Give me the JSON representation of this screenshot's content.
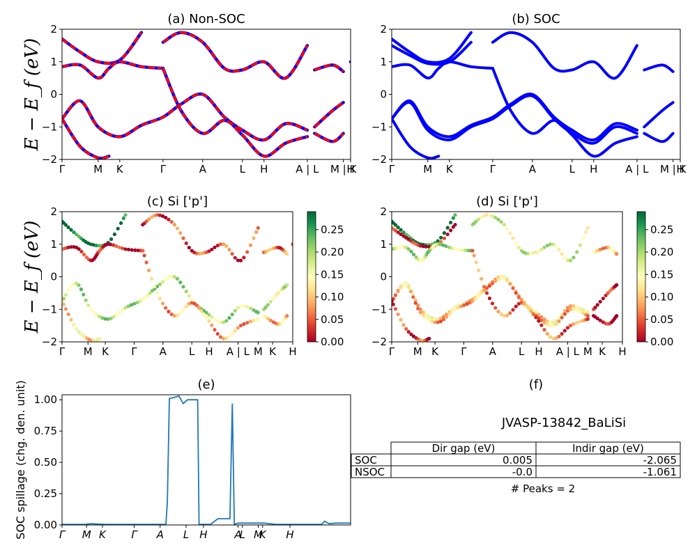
{
  "chart_data": [
    {
      "id": "a",
      "type": "line",
      "title": "(a) Non-SOC",
      "ylabel": "E − E_f (eV)",
      "ylim": [
        -2,
        2
      ],
      "yticks": [
        -2,
        -1,
        0,
        1,
        2
      ],
      "xlim": [
        0,
        8
      ],
      "xticks": [
        0,
        1,
        1.6,
        2.8,
        3.9,
        5.0,
        5.6,
        6.8,
        7.8,
        8
      ],
      "xticklabels": [
        "Γ",
        "M",
        "K",
        "Γ",
        "A",
        "L",
        "H",
        "A | L",
        "M | K",
        "H"
      ],
      "series": [
        {
          "color": "#0000ff",
          "values": [
            [
              0,
              1.7
            ],
            [
              0.5,
              1.3
            ],
            [
              1.0,
              1.0
            ],
            [
              1.6,
              1.05
            ],
            [
              2.2,
              1.9
            ]
          ]
        },
        {
          "color": "#0000ff",
          "values": [
            [
              0,
              0.85
            ],
            [
              0.5,
              0.9
            ],
            [
              1.0,
              0.5
            ],
            [
              1.3,
              0.8
            ],
            [
              1.6,
              1.0
            ],
            [
              2.2,
              0.85
            ],
            [
              2.8,
              0.8
            ]
          ]
        },
        {
          "color": "#0000ff",
          "values": [
            [
              0,
              -0.75
            ],
            [
              0.5,
              -0.2
            ],
            [
              1.0,
              -1.0
            ],
            [
              1.6,
              -1.3
            ],
            [
              2.2,
              -0.95
            ],
            [
              2.8,
              -0.7
            ],
            [
              3.3,
              -0.3
            ],
            [
              3.9,
              0.0
            ],
            [
              4.5,
              -0.7
            ],
            [
              5.0,
              -1.1
            ],
            [
              5.6,
              -1.4
            ],
            [
              6.2,
              -0.9
            ],
            [
              6.8,
              -1.1
            ]
          ]
        },
        {
          "color": "#0000ff",
          "values": [
            [
              0,
              -0.75
            ],
            [
              0.5,
              -1.6
            ],
            [
              1.0,
              -1.95
            ],
            [
              1.3,
              -1.9
            ]
          ]
        },
        {
          "color": "#0000ff",
          "values": [
            [
              2.8,
              0.8
            ],
            [
              3.3,
              -0.5
            ],
            [
              3.9,
              -1.2
            ],
            [
              4.5,
              -0.8
            ],
            [
              5.0,
              -1.25
            ],
            [
              5.6,
              -1.9
            ],
            [
              6.2,
              -1.5
            ],
            [
              6.8,
              -1.3
            ]
          ]
        },
        {
          "color": "#0000ff",
          "values": [
            [
              2.8,
              1.6
            ],
            [
              3.3,
              1.9
            ],
            [
              3.9,
              1.6
            ],
            [
              4.5,
              0.8
            ],
            [
              5.0,
              0.75
            ],
            [
              5.6,
              1.0
            ],
            [
              6.2,
              0.5
            ],
            [
              6.8,
              1.5
            ]
          ]
        },
        {
          "color": "#0000ff",
          "values": [
            [
              7.0,
              0.75
            ],
            [
              7.5,
              0.9
            ],
            [
              7.8,
              0.7
            ]
          ]
        },
        {
          "color": "#0000ff",
          "values": [
            [
              7.0,
              -1.0
            ],
            [
              7.5,
              -0.5
            ],
            [
              7.8,
              -0.25
            ]
          ]
        },
        {
          "color": "#0000ff",
          "values": [
            [
              7.0,
              -1.2
            ],
            [
              7.5,
              -1.45
            ],
            [
              7.8,
              -1.2
            ]
          ]
        },
        {
          "color": "#0000ff",
          "values": [
            [
              8.0,
              1.0
            ],
            [
              8.0,
              1.0
            ]
          ]
        }
      ]
    },
    {
      "id": "b",
      "type": "line",
      "title": "(b) SOC",
      "ylim": [
        -2,
        2
      ],
      "yticks": [
        -2,
        -1,
        0,
        1,
        2
      ],
      "xlim": [
        0,
        8
      ],
      "xticks": [
        0,
        1,
        1.6,
        2.8,
        3.9,
        5.0,
        5.6,
        6.8,
        7.8,
        8
      ],
      "xticklabels": [
        "Γ",
        "M",
        "K",
        "Γ",
        "A",
        "L",
        "H",
        "A | L",
        "M | K",
        "H"
      ],
      "series": [
        {
          "color": "#0000ff",
          "values": [
            [
              0,
              1.7
            ],
            [
              0.5,
              1.3
            ],
            [
              1.0,
              1.0
            ],
            [
              1.6,
              1.1
            ],
            [
              2.2,
              1.9
            ]
          ]
        },
        {
          "color": "#0000ff",
          "values": [
            [
              0,
              1.5
            ],
            [
              0.5,
              1.2
            ],
            [
              1.0,
              0.95
            ],
            [
              1.6,
              1.0
            ],
            [
              2.2,
              1.6
            ]
          ]
        },
        {
          "color": "#0000ff",
          "values": [
            [
              0,
              0.85
            ],
            [
              0.5,
              0.9
            ],
            [
              1.0,
              0.5
            ],
            [
              1.3,
              0.8
            ],
            [
              1.6,
              1.0
            ],
            [
              2.2,
              0.85
            ],
            [
              2.8,
              0.8
            ]
          ]
        },
        {
          "color": "#0000ff",
          "values": [
            [
              0,
              -0.75
            ],
            [
              0.5,
              -0.2
            ],
            [
              1.0,
              -1.0
            ],
            [
              1.6,
              -1.3
            ],
            [
              2.2,
              -0.95
            ],
            [
              2.8,
              -0.7
            ],
            [
              3.3,
              -0.3
            ],
            [
              3.9,
              0.0
            ],
            [
              4.5,
              -0.7
            ],
            [
              5.0,
              -1.1
            ],
            [
              5.6,
              -1.4
            ],
            [
              6.2,
              -0.9
            ],
            [
              6.8,
              -1.1
            ]
          ]
        },
        {
          "color": "#0000ff",
          "values": [
            [
              0,
              -0.75
            ],
            [
              0.5,
              -0.25
            ],
            [
              1.0,
              -1.1
            ],
            [
              1.6,
              -1.4
            ],
            [
              2.2,
              -1.0
            ],
            [
              2.8,
              -0.75
            ],
            [
              3.3,
              -0.35
            ],
            [
              3.9,
              -0.05
            ],
            [
              4.5,
              -0.75
            ],
            [
              5.0,
              -1.2
            ],
            [
              5.6,
              -1.5
            ],
            [
              6.2,
              -1.0
            ],
            [
              6.8,
              -1.2
            ]
          ]
        },
        {
          "color": "#0000ff",
          "values": [
            [
              0,
              -0.75
            ],
            [
              0.5,
              -1.6
            ],
            [
              1.0,
              -1.95
            ],
            [
              1.3,
              -1.9
            ]
          ]
        },
        {
          "color": "#0000ff",
          "values": [
            [
              2.8,
              0.8
            ],
            [
              3.3,
              -0.5
            ],
            [
              3.9,
              -1.2
            ],
            [
              4.5,
              -0.8
            ],
            [
              5.0,
              -1.25
            ],
            [
              5.6,
              -1.9
            ],
            [
              6.2,
              -1.5
            ],
            [
              6.8,
              -1.3
            ]
          ]
        },
        {
          "color": "#0000ff",
          "values": [
            [
              2.8,
              1.6
            ],
            [
              3.3,
              1.9
            ],
            [
              3.9,
              1.6
            ],
            [
              4.5,
              0.8
            ],
            [
              5.0,
              0.75
            ],
            [
              5.6,
              1.0
            ],
            [
              6.2,
              0.5
            ],
            [
              6.8,
              1.5
            ]
          ]
        },
        {
          "color": "#0000ff",
          "values": [
            [
              7.0,
              0.75
            ],
            [
              7.5,
              0.9
            ],
            [
              7.8,
              0.7
            ]
          ]
        },
        {
          "color": "#0000ff",
          "values": [
            [
              7.0,
              -1.0
            ],
            [
              7.5,
              -0.5
            ],
            [
              7.8,
              -0.25
            ]
          ]
        },
        {
          "color": "#0000ff",
          "values": [
            [
              7.0,
              -1.2
            ],
            [
              7.5,
              -1.45
            ],
            [
              7.8,
              -1.2
            ]
          ]
        }
      ]
    },
    {
      "id": "c",
      "type": "scatter",
      "title": "(c)  Si ['p']",
      "ylabel": "E − E_f (eV)",
      "ylim": [
        -2,
        2
      ],
      "yticks": [
        -2,
        -1,
        0,
        1,
        2
      ],
      "xlim": [
        0,
        8
      ],
      "xticks": [
        0,
        0.9,
        1.5,
        2.5,
        3.5,
        4.5,
        5.1,
        6.1,
        6.8,
        7.3,
        8
      ],
      "xticklabels": [
        "Γ",
        "M",
        "K",
        "Γ",
        "A",
        "L",
        "H",
        "A | L",
        "M",
        "K",
        "H"
      ],
      "colorbar": {
        "min": 0.0,
        "max": 0.29,
        "ticks": [
          "0.00",
          "0.05",
          "0.10",
          "0.15",
          "0.20",
          "0.25"
        ],
        "colormap": "RdYlGn"
      }
    },
    {
      "id": "d",
      "type": "scatter",
      "title": "(d) Si ['p']",
      "ylim": [
        -2,
        2
      ],
      "yticks": [
        -2,
        -1,
        0,
        1,
        2
      ],
      "xlim": [
        0,
        8
      ],
      "xticks": [
        0,
        0.9,
        1.5,
        2.5,
        3.5,
        4.5,
        5.1,
        6.1,
        6.8,
        7.3,
        8
      ],
      "xticklabels": [
        "Γ",
        "M",
        "K",
        "Γ",
        "A",
        "L",
        "H",
        "A | L",
        "M",
        "K",
        "H"
      ],
      "colorbar": {
        "min": 0.0,
        "max": 0.29,
        "ticks": [
          "0.00",
          "0.05",
          "0.10",
          "0.15",
          "0.20",
          "0.25"
        ],
        "colormap": "RdYlGn"
      }
    },
    {
      "id": "e",
      "type": "line",
      "title": "(e)",
      "ylabel": "SOC spillage (chg. den. unit)",
      "ylim": [
        0,
        1.04
      ],
      "yticks": [
        0.0,
        0.25,
        0.5,
        0.75,
        1.0
      ],
      "yticklabels": [
        "0.00",
        "0.25",
        "0.50",
        "0.75",
        "1.00"
      ],
      "xlim": [
        0,
        10
      ],
      "xticks": [
        0,
        0.85,
        1.4,
        2.5,
        3.4,
        4.3,
        4.9,
        6.1,
        6.25,
        6.8,
        6.95,
        7.9
      ],
      "xticklabels": [
        "Γ",
        "M",
        "K",
        "Γ",
        "A",
        "L",
        "H",
        "A",
        "L",
        "M",
        "K",
        "H"
      ],
      "series": [
        {
          "color": "#1f77b4",
          "values": [
            [
              0,
              0.005
            ],
            [
              0.8,
              0.005
            ],
            [
              1.0,
              0.01
            ],
            [
              1.5,
              0.005
            ],
            [
              3.5,
              0.005
            ],
            [
              3.6,
              0.005
            ],
            [
              3.65,
              0.18
            ],
            [
              3.72,
              1.01
            ],
            [
              3.9,
              1.02
            ],
            [
              4.05,
              1.03
            ],
            [
              4.2,
              0.97
            ],
            [
              4.35,
              1.0
            ],
            [
              4.6,
              1.0
            ],
            [
              4.7,
              1.0
            ],
            [
              4.75,
              0.005
            ],
            [
              5.0,
              0.005
            ],
            [
              5.15,
              0.005
            ],
            [
              5.4,
              0.05
            ],
            [
              5.7,
              0.05
            ],
            [
              5.82,
              0.05
            ],
            [
              5.9,
              0.97
            ],
            [
              5.97,
              0.005
            ],
            [
              6.1,
              0.015
            ],
            [
              7.0,
              0.015
            ],
            [
              7.4,
              0.005
            ],
            [
              9.0,
              0.005
            ],
            [
              9.1,
              0.03
            ],
            [
              9.25,
              0.01
            ],
            [
              9.5,
              0.015
            ],
            [
              10.0,
              0.015
            ]
          ]
        }
      ]
    }
  ],
  "panel_f": {
    "title": "(f)",
    "material": "JVASP-13842_BaLiSi",
    "table": {
      "columns": [
        "Dir gap (eV)",
        "Indir gap (eV)"
      ],
      "rows": [
        {
          "label": "SOC",
          "values": [
            "0.005",
            "-2.065"
          ]
        },
        {
          "label": "NSOC",
          "values": [
            "-0.0",
            "-1.061"
          ]
        }
      ]
    },
    "peaks": "# Peaks = 2"
  },
  "colors": {
    "band_blue": "#0000ff",
    "band_red_dash": "#ff0000",
    "spillage_line": "#1f77b4"
  }
}
